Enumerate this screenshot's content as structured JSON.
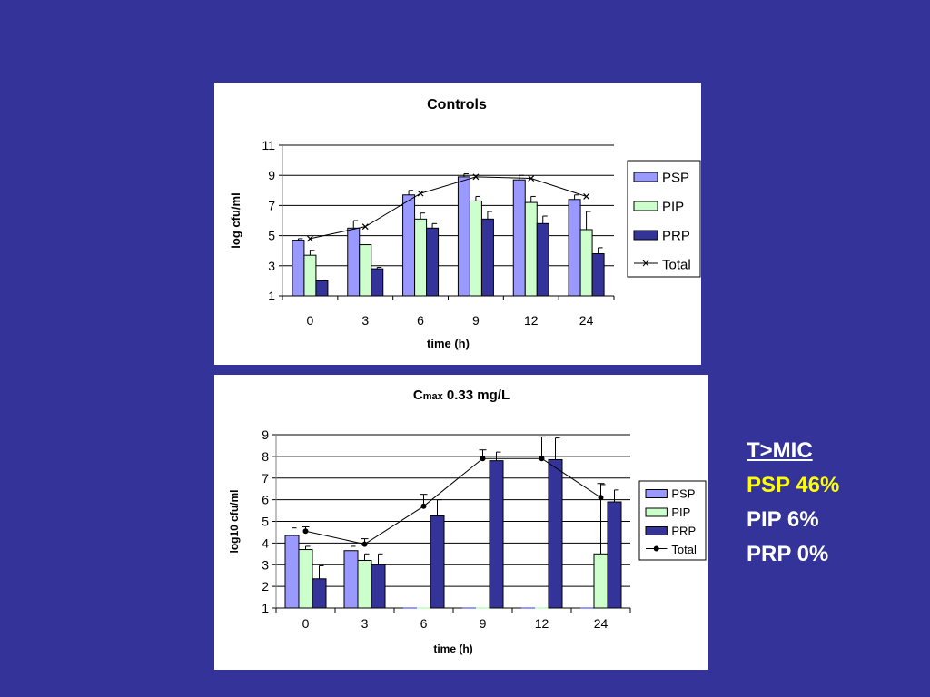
{
  "chart_data": [
    {
      "type": "bar",
      "title": "Controls",
      "xlabel": "time (h)",
      "ylabel": "log cfu/ml",
      "ylim": [
        1,
        11
      ],
      "yticks": [
        1,
        3,
        5,
        7,
        9,
        11
      ],
      "categories": [
        "0",
        "3",
        "6",
        "9",
        "12",
        "24"
      ],
      "series": [
        {
          "name": "PSP",
          "kind": "bar",
          "values": [
            4.7,
            5.5,
            7.7,
            8.9,
            8.7,
            7.4
          ],
          "errors": [
            0.1,
            0.5,
            0.3,
            0.2,
            0.3,
            0.3
          ],
          "color": "#9999ff"
        },
        {
          "name": "PIP",
          "kind": "bar",
          "values": [
            3.7,
            4.4,
            6.1,
            7.3,
            7.2,
            5.4
          ],
          "errors": [
            0.3,
            0.0,
            0.4,
            0.3,
            0.4,
            1.2
          ],
          "color": "#ccffcc"
        },
        {
          "name": "PRP",
          "kind": "bar",
          "values": [
            2.0,
            2.8,
            5.5,
            6.1,
            5.8,
            3.8
          ],
          "errors": [
            0.05,
            0.1,
            0.3,
            0.5,
            0.5,
            0.4
          ],
          "color": "#333399"
        },
        {
          "name": "Total",
          "kind": "line",
          "marker": "x",
          "values": [
            4.8,
            5.6,
            7.8,
            8.9,
            8.8,
            7.6
          ],
          "color": "#000000"
        }
      ],
      "grid": true,
      "legend": "right"
    },
    {
      "type": "bar",
      "title": "C",
      "title_sub": "max",
      "title_rest": " 0.33 mg/L",
      "xlabel": "time (h)",
      "ylabel": "log10 cfu/ml",
      "ylim": [
        1,
        9
      ],
      "yticks": [
        1,
        2,
        3,
        4,
        5,
        6,
        7,
        8,
        9
      ],
      "categories": [
        "0",
        "3",
        "6",
        "9",
        "12",
        "24"
      ],
      "series": [
        {
          "name": "PSP",
          "kind": "bar",
          "values": [
            4.35,
            3.65,
            1.0,
            1.0,
            1.0,
            1.0
          ],
          "errors": [
            0.35,
            0.2,
            0,
            0,
            0,
            0
          ],
          "color": "#9999ff"
        },
        {
          "name": "PIP",
          "kind": "bar",
          "values": [
            3.7,
            3.2,
            1.0,
            1.0,
            1.0,
            3.5
          ],
          "errors": [
            0.15,
            0.3,
            0,
            0,
            0,
            3.2
          ],
          "color": "#ccffcc"
        },
        {
          "name": "PRP",
          "kind": "bar",
          "values": [
            2.35,
            3.0,
            5.25,
            7.8,
            7.85,
            5.9
          ],
          "errors": [
            0.6,
            0.5,
            0.75,
            0.4,
            1.0,
            0.55
          ],
          "color": "#333399"
        },
        {
          "name": "Total",
          "kind": "line",
          "marker": "dot",
          "values": [
            4.55,
            3.95,
            5.7,
            7.9,
            7.9,
            6.1
          ],
          "errors": [
            0.2,
            0.25,
            0.55,
            0.4,
            1.0,
            0.65
          ],
          "color": "#000000"
        }
      ],
      "grid": true,
      "legend": "right"
    }
  ],
  "side_text": {
    "heading": "T>MIC",
    "psp": "PSP 46%",
    "pip": "PIP 6%",
    "prp": "PRP 0%"
  }
}
